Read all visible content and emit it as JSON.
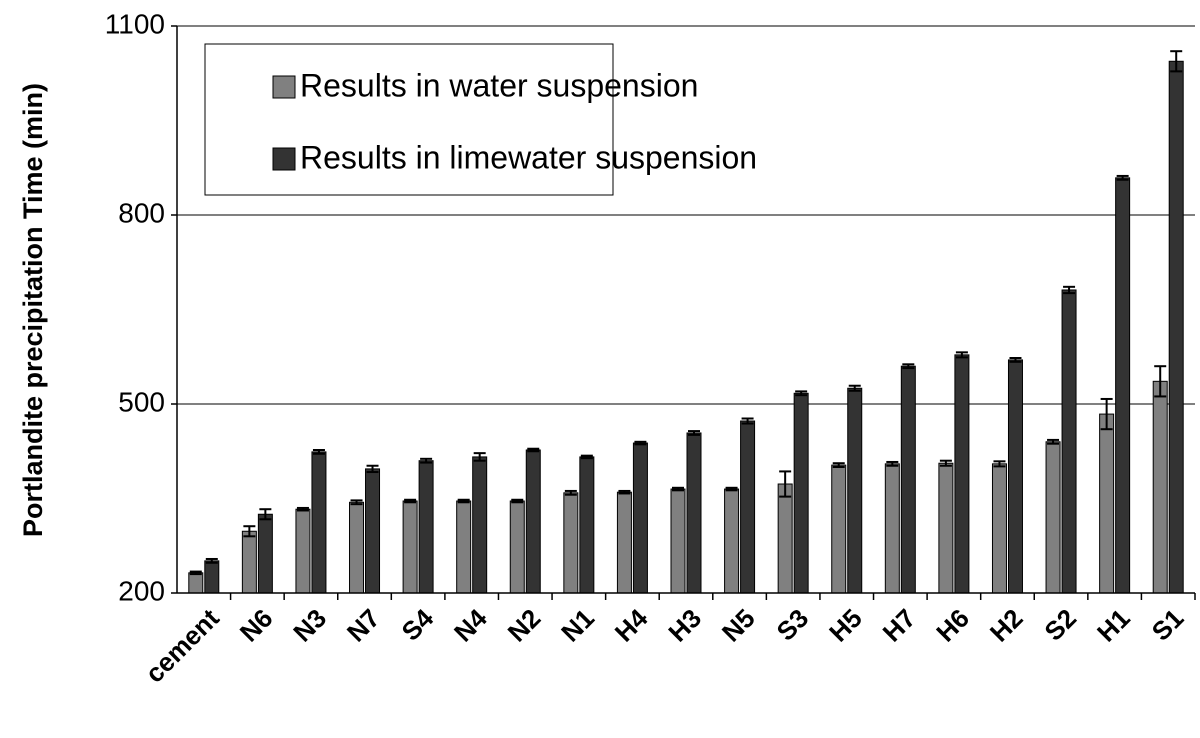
{
  "chart_data": {
    "type": "bar",
    "y_label": "Portlandite precipitation Time (min)",
    "categories": [
      "cement",
      "N6",
      "N3",
      "N7",
      "S4",
      "N4",
      "N2",
      "N1",
      "H4",
      "H3",
      "N5",
      "S3",
      "H5",
      "H7",
      "H6",
      "H2",
      "S2",
      "H1",
      "S1"
    ],
    "series": [
      {
        "name": "Results in water suspension",
        "color": "#808080",
        "values": [
          232,
          298,
          333,
          344,
          346,
          346,
          346,
          359,
          360,
          365,
          365,
          373,
          403,
          405,
          406,
          405,
          440,
          484,
          536
        ],
        "errors": [
          2,
          8,
          2,
          3,
          2,
          2,
          2,
          3,
          2,
          2,
          2,
          20,
          3,
          3,
          4,
          4,
          3,
          24,
          24
        ]
      },
      {
        "name": "Results in limewater suspension",
        "color": "#333333",
        "values": [
          251,
          325,
          424,
          397,
          410,
          416,
          427,
          416,
          438,
          454,
          473,
          517,
          525,
          560,
          578,
          570,
          681,
          859,
          1044
        ],
        "errors": [
          3,
          8,
          3,
          5,
          3,
          6,
          2,
          2,
          2,
          3,
          4,
          3,
          4,
          3,
          4,
          3,
          5,
          3,
          16
        ]
      }
    ],
    "ylim": [
      200,
      1100
    ],
    "yticks": [
      200,
      500,
      800,
      1100
    ],
    "grid": true,
    "legend": "top-left"
  }
}
